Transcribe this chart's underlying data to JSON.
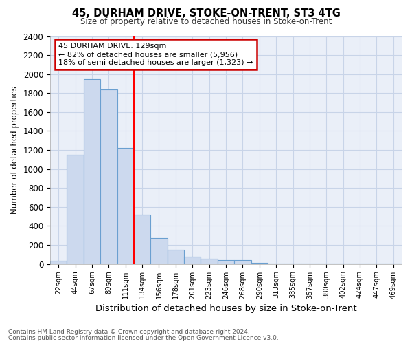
{
  "title": "45, DURHAM DRIVE, STOKE-ON-TRENT, ST3 4TG",
  "subtitle": "Size of property relative to detached houses in Stoke-on-Trent",
  "xlabel": "Distribution of detached houses by size in Stoke-on-Trent",
  "ylabel": "Number of detached properties",
  "footnote1": "Contains HM Land Registry data © Crown copyright and database right 2024.",
  "footnote2": "Contains public sector information licensed under the Open Government Licence v3.0.",
  "bar_labels": [
    "22sqm",
    "44sqm",
    "67sqm",
    "89sqm",
    "111sqm",
    "134sqm",
    "156sqm",
    "178sqm",
    "201sqm",
    "223sqm",
    "246sqm",
    "268sqm",
    "290sqm",
    "313sqm",
    "335sqm",
    "357sqm",
    "380sqm",
    "402sqm",
    "424sqm",
    "447sqm",
    "469sqm"
  ],
  "bar_values": [
    30,
    1150,
    1950,
    1840,
    1220,
    520,
    270,
    150,
    80,
    55,
    40,
    40,
    8,
    5,
    5,
    3,
    3,
    3,
    2,
    2,
    2
  ],
  "bar_color": "#ccd9ee",
  "bar_edge_color": "#6a9fd0",
  "red_line_index": 5,
  "property_sqm": 129,
  "smaller_pct": 82,
  "smaller_count": 5956,
  "larger_pct": 18,
  "larger_count": 1323,
  "ylim": [
    0,
    2400
  ],
  "yticks": [
    0,
    200,
    400,
    600,
    800,
    1000,
    1200,
    1400,
    1600,
    1800,
    2000,
    2200,
    2400
  ],
  "annotation_box_color": "#ffffff",
  "annotation_box_edge": "#cc0000",
  "grid_color": "#c8d4e8",
  "bg_color": "#eaeff8"
}
